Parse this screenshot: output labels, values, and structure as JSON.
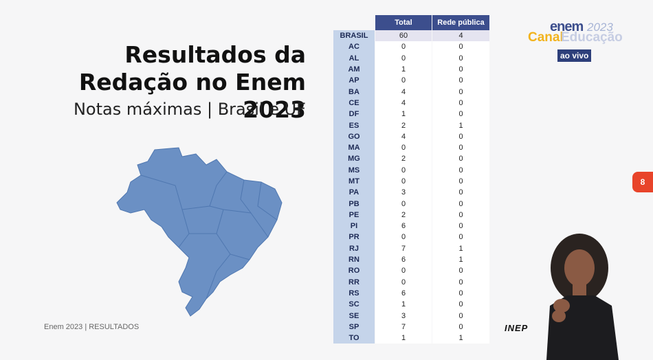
{
  "slide": {
    "title_line1": "Resultados da",
    "title_line2": "Redação no Enem 2023",
    "subtitle": "Notas máximas | Brasil e UF",
    "footer": "Enem 2023 | RESULTADOS",
    "page_number": "8"
  },
  "broadcast": {
    "logo_enem": "enem",
    "logo_year": "2023",
    "logo_canal": "Canal",
    "logo_educacao": "Educação",
    "live_label": "ao vivo",
    "inep_label": "INEP"
  },
  "table": {
    "headers": [
      "Total",
      "Rede pública"
    ],
    "rows": [
      {
        "uf": "BRASIL",
        "total": "60",
        "publica": "4"
      },
      {
        "uf": "AC",
        "total": "0",
        "publica": "0"
      },
      {
        "uf": "AL",
        "total": "0",
        "publica": "0"
      },
      {
        "uf": "AM",
        "total": "1",
        "publica": "0"
      },
      {
        "uf": "AP",
        "total": "0",
        "publica": "0"
      },
      {
        "uf": "BA",
        "total": "4",
        "publica": "0"
      },
      {
        "uf": "CE",
        "total": "4",
        "publica": "0"
      },
      {
        "uf": "DF",
        "total": "1",
        "publica": "0"
      },
      {
        "uf": "ES",
        "total": "2",
        "publica": "1"
      },
      {
        "uf": "GO",
        "total": "4",
        "publica": "0"
      },
      {
        "uf": "MA",
        "total": "0",
        "publica": "0"
      },
      {
        "uf": "MG",
        "total": "2",
        "publica": "0"
      },
      {
        "uf": "MS",
        "total": "0",
        "publica": "0"
      },
      {
        "uf": "MT",
        "total": "0",
        "publica": "0"
      },
      {
        "uf": "PA",
        "total": "3",
        "publica": "0"
      },
      {
        "uf": "PB",
        "total": "0",
        "publica": "0"
      },
      {
        "uf": "PE",
        "total": "2",
        "publica": "0"
      },
      {
        "uf": "PI",
        "total": "6",
        "publica": "0"
      },
      {
        "uf": "PR",
        "total": "0",
        "publica": "0"
      },
      {
        "uf": "RJ",
        "total": "7",
        "publica": "1"
      },
      {
        "uf": "RN",
        "total": "6",
        "publica": "1"
      },
      {
        "uf": "RO",
        "total": "0",
        "publica": "0"
      },
      {
        "uf": "RR",
        "total": "0",
        "publica": "0"
      },
      {
        "uf": "RS",
        "total": "6",
        "publica": "0"
      },
      {
        "uf": "SC",
        "total": "1",
        "publica": "0"
      },
      {
        "uf": "SE",
        "total": "3",
        "publica": "0"
      },
      {
        "uf": "SP",
        "total": "7",
        "publica": "0"
      },
      {
        "uf": "TO",
        "total": "1",
        "publica": "1"
      }
    ]
  },
  "colors": {
    "header_bg": "#3c4e8d",
    "uf_cell_bg": "#c5d4ea",
    "map_fill": "#6b90c4",
    "badge": "#e8442a",
    "brand_yellow": "#f2b31d"
  }
}
